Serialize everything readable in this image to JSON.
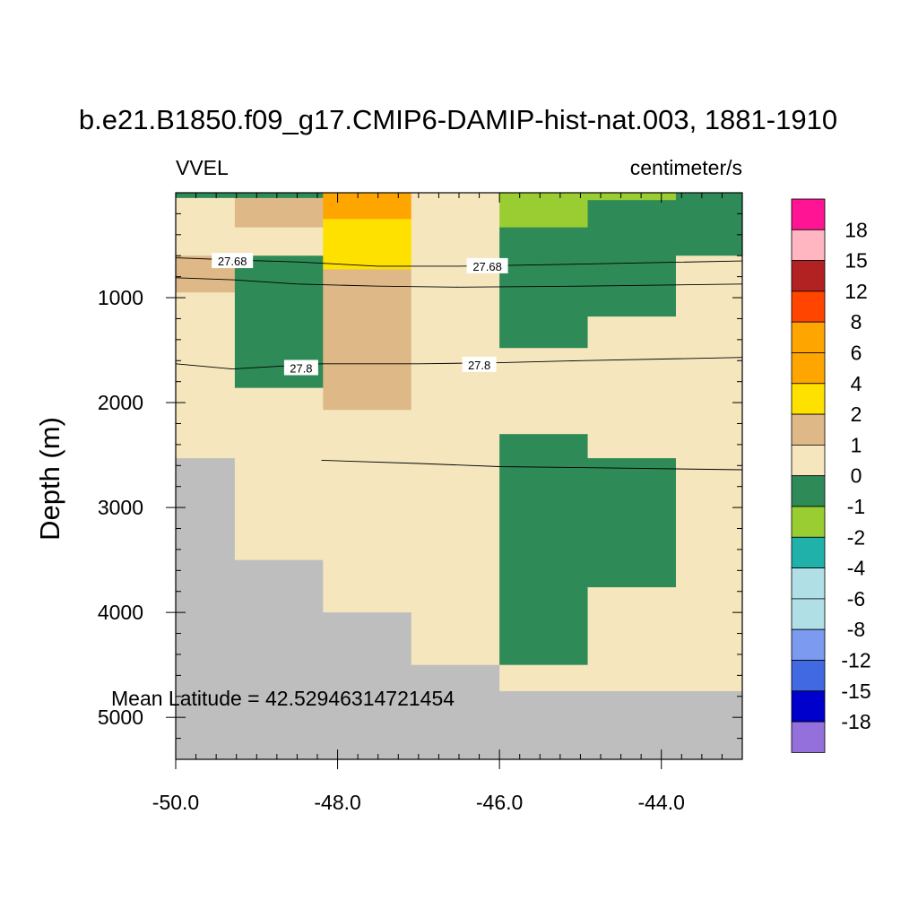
{
  "chart_data": {
    "type": "heatmap",
    "title": "b.e21.B1850.f09_g17.CMIP6-DAMIP-hist-nat.003, 1881-1910",
    "left_label": "VVEL",
    "right_label": "centimeter/s",
    "xlabel": "",
    "ylabel": "Depth (m)",
    "xlim": [
      -50.0,
      -43.0
    ],
    "ylim_depth": [
      0,
      5400
    ],
    "y_reversed": true,
    "x_ticks": [
      "-50.0",
      "-48.0",
      "-46.0",
      "-44.0"
    ],
    "x_tick_values": [
      -50.0,
      -48.0,
      -46.0,
      -44.0
    ],
    "y_ticks": [
      "1000",
      "2000",
      "3000",
      "4000",
      "5000"
    ],
    "y_tick_values": [
      1000,
      2000,
      3000,
      4000,
      5000
    ],
    "grid": false,
    "missing_color": "#bebebe",
    "colorbar": {
      "placement": "right",
      "labels": [
        "18",
        "15",
        "12",
        "8",
        "6",
        "4",
        "2",
        "1",
        "0",
        "-1",
        "-2",
        "-4",
        "-6",
        "-8",
        "-12",
        "-15",
        "-18"
      ],
      "colors_top_to_bottom": [
        "#ff1493",
        "#ffb6c1",
        "#b22222",
        "#ff4500",
        "#ffa500",
        "#ffa500",
        "#ffe100",
        "#deb887",
        "#f5e6be",
        "#2e8b57",
        "#9acd32",
        "#20b2aa",
        "#b0e0e6",
        "#b0e0e6",
        "#7b9af0",
        "#4169e1",
        "#0000cd",
        "#9370db"
      ]
    },
    "columns_lon": [
      [
        -50.0,
        -49.27
      ],
      [
        -49.27,
        -48.18
      ],
      [
        -48.18,
        -47.09
      ],
      [
        -47.09,
        -46.0
      ],
      [
        -46.0,
        -44.91
      ],
      [
        -44.91,
        -43.82
      ],
      [
        -43.82,
        -43.0
      ]
    ],
    "cells": [
      {
        "lon": [
          -50.0,
          -49.27
        ],
        "depth": [
          0,
          50
        ],
        "value": -0.5
      },
      {
        "lon": [
          -50.0,
          -49.27
        ],
        "depth": [
          50,
          600
        ],
        "value": 0.5
      },
      {
        "lon": [
          -50.0,
          -49.27
        ],
        "depth": [
          600,
          950
        ],
        "value": 1.5
      },
      {
        "lon": [
          -50.0,
          -49.27
        ],
        "depth": [
          950,
          2530
        ],
        "value": 0.5
      },
      {
        "lon": [
          -50.0,
          -49.27
        ],
        "depth": [
          2530,
          5400
        ],
        "value": null
      },
      {
        "lon": [
          -49.27,
          -48.18
        ],
        "depth": [
          0,
          50
        ],
        "value": -0.5
      },
      {
        "lon": [
          -49.27,
          -48.18
        ],
        "depth": [
          50,
          330
        ],
        "value": 1.5
      },
      {
        "lon": [
          -49.27,
          -48.18
        ],
        "depth": [
          330,
          600
        ],
        "value": 0.5
      },
      {
        "lon": [
          -49.27,
          -48.18
        ],
        "depth": [
          600,
          1860
        ],
        "value": -0.5
      },
      {
        "lon": [
          -49.27,
          -48.18
        ],
        "depth": [
          1860,
          3500
        ],
        "value": 0.5
      },
      {
        "lon": [
          -49.27,
          -48.18
        ],
        "depth": [
          3500,
          5400
        ],
        "value": null
      },
      {
        "lon": [
          -48.18,
          -47.09
        ],
        "depth": [
          0,
          250
        ],
        "value": 5
      },
      {
        "lon": [
          -48.18,
          -47.09
        ],
        "depth": [
          250,
          730
        ],
        "value": 3
      },
      {
        "lon": [
          -48.18,
          -47.09
        ],
        "depth": [
          730,
          2070
        ],
        "value": 1.5
      },
      {
        "lon": [
          -48.18,
          -47.09
        ],
        "depth": [
          2070,
          4000
        ],
        "value": 0.5
      },
      {
        "lon": [
          -48.18,
          -47.09
        ],
        "depth": [
          4000,
          5400
        ],
        "value": null
      },
      {
        "lon": [
          -47.09,
          -46.0
        ],
        "depth": [
          0,
          4500
        ],
        "value": 0.5
      },
      {
        "lon": [
          -47.09,
          -46.0
        ],
        "depth": [
          4500,
          5400
        ],
        "value": null
      },
      {
        "lon": [
          -46.0,
          -44.91
        ],
        "depth": [
          0,
          330
        ],
        "value": -1.5
      },
      {
        "lon": [
          -46.0,
          -44.91
        ],
        "depth": [
          330,
          1480
        ],
        "value": -0.5
      },
      {
        "lon": [
          -46.0,
          -44.91
        ],
        "depth": [
          1480,
          2300
        ],
        "value": 0.5
      },
      {
        "lon": [
          -46.0,
          -44.91
        ],
        "depth": [
          2300,
          4500
        ],
        "value": -0.5
      },
      {
        "lon": [
          -46.0,
          -44.91
        ],
        "depth": [
          4500,
          4750
        ],
        "value": 0.5
      },
      {
        "lon": [
          -46.0,
          -44.91
        ],
        "depth": [
          4750,
          5400
        ],
        "value": null
      },
      {
        "lon": [
          -44.91,
          -43.82
        ],
        "depth": [
          0,
          70
        ],
        "value": -1.5
      },
      {
        "lon": [
          -44.91,
          -43.82
        ],
        "depth": [
          70,
          1180
        ],
        "value": -0.5
      },
      {
        "lon": [
          -44.91,
          -43.82
        ],
        "depth": [
          1180,
          2530
        ],
        "value": 0.5
      },
      {
        "lon": [
          -44.91,
          -43.82
        ],
        "depth": [
          2530,
          3760
        ],
        "value": -0.5
      },
      {
        "lon": [
          -44.91,
          -43.82
        ],
        "depth": [
          3760,
          4750
        ],
        "value": 0.5
      },
      {
        "lon": [
          -44.91,
          -43.82
        ],
        "depth": [
          4750,
          5400
        ],
        "value": null
      },
      {
        "lon": [
          -43.82,
          -43.0
        ],
        "depth": [
          0,
          600
        ],
        "value": -0.5
      },
      {
        "lon": [
          -43.82,
          -43.0
        ],
        "depth": [
          600,
          4750
        ],
        "value": 0.5
      },
      {
        "lon": [
          -43.82,
          -43.0
        ],
        "depth": [
          4750,
          5400
        ],
        "value": null
      }
    ],
    "contours": [
      {
        "label": "27.68",
        "points": [
          [
            -50.0,
            620
          ],
          [
            -49.3,
            640
          ],
          [
            -48.5,
            660
          ],
          [
            -47.5,
            700
          ],
          [
            -46.5,
            700
          ],
          [
            -45.0,
            680
          ],
          [
            -43.0,
            650
          ]
        ]
      },
      {
        "label": "",
        "points": [
          [
            -50.0,
            810
          ],
          [
            -49.3,
            830
          ],
          [
            -48.5,
            870
          ],
          [
            -47.5,
            890
          ],
          [
            -46.5,
            900
          ],
          [
            -45.0,
            890
          ],
          [
            -43.0,
            870
          ]
        ]
      },
      {
        "label": "27.8",
        "points": [
          [
            -50.0,
            1630
          ],
          [
            -49.3,
            1680
          ],
          [
            -48.2,
            1630
          ],
          [
            -47.0,
            1630
          ],
          [
            -46.0,
            1620
          ],
          [
            -45.0,
            1600
          ],
          [
            -43.0,
            1570
          ]
        ]
      },
      {
        "label": "",
        "points": [
          [
            -48.2,
            2550
          ],
          [
            -47.0,
            2580
          ],
          [
            -46.0,
            2610
          ],
          [
            -45.0,
            2620
          ],
          [
            -43.0,
            2640
          ]
        ]
      }
    ],
    "contour_labels": [
      {
        "text": "27.68",
        "lon": -49.3,
        "depth": 650
      },
      {
        "text": "27.68",
        "lon": -46.15,
        "depth": 700
      },
      {
        "text": "27.8",
        "lon": -48.45,
        "depth": 1670
      },
      {
        "text": "27.8",
        "lon": -46.25,
        "depth": 1640
      }
    ],
    "annotations": [
      "Mean Latitude = 42.52946314721454"
    ]
  }
}
